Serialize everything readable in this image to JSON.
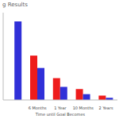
{
  "chart_data": {
    "type": "bar",
    "title": "g Results",
    "x_label": "Time until Goal Becomes",
    "categories": [
      null,
      "6 Months",
      "1 Year",
      "10 Months",
      "2 Years"
    ],
    "series": [
      {
        "color": "#ee1c1c",
        "values": [
          null,
          61,
          30,
          15,
          6
        ]
      },
      {
        "color": "#3030d8",
        "values": [
          108,
          44,
          18,
          8,
          3
        ]
      }
    ],
    "ylim": [
      0,
      120
    ],
    "tick_labels": "x",
    "grid": false
  }
}
